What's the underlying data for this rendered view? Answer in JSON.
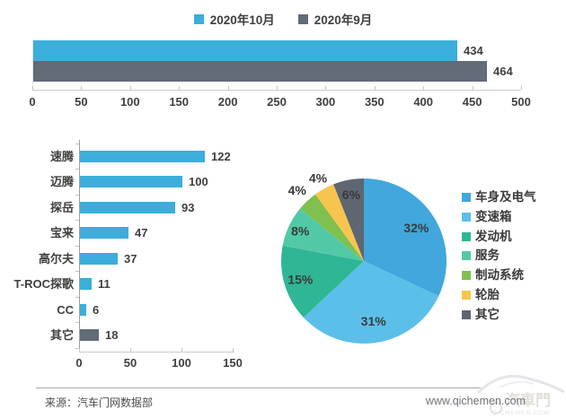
{
  "footer": {
    "source": "来源：汽车门网数据部",
    "website": "www.qichemen.com",
    "watermark_cn": "汽車門",
    "watermark_en": "QICHEMEN.COM"
  },
  "chart_data": [
    {
      "id": "monthly-comparison",
      "type": "bar",
      "orientation": "horizontal",
      "legend_position": "top",
      "data_labels": true,
      "xlim": [
        0,
        500
      ],
      "xticks": [
        0,
        50,
        100,
        150,
        200,
        250,
        300,
        350,
        400,
        450,
        500
      ],
      "series": [
        {
          "name": "2020年10月",
          "value": 434,
          "color": "#3BAEDB"
        },
        {
          "name": "2020年9月",
          "value": 464,
          "color": "#626B78"
        }
      ]
    },
    {
      "id": "model-ranking",
      "type": "bar",
      "orientation": "horizontal",
      "data_labels": true,
      "xlim": [
        0,
        150
      ],
      "xticks": [
        0,
        50,
        100,
        150
      ],
      "categories": [
        "速腾",
        "迈腾",
        "探岳",
        "宝来",
        "高尔夫",
        "T-ROC探歌",
        "CC",
        "其它"
      ],
      "values": [
        122,
        100,
        93,
        47,
        37,
        11,
        6,
        18
      ],
      "bar_colors": [
        "#3BAEDB",
        "#3BAEDB",
        "#3BAEDB",
        "#3BAEDB",
        "#3BAEDB",
        "#3BAEDB",
        "#3BAEDB",
        "#626B78"
      ]
    },
    {
      "id": "category-share",
      "type": "pie",
      "legend_position": "right",
      "start_angle_deg": 0,
      "slices": [
        {
          "label": "车身及电气",
          "value": 32,
          "pct_label": "32%",
          "color": "#41A7DC"
        },
        {
          "label": "变速箱",
          "value": 31,
          "pct_label": "31%",
          "color": "#5CBFE9"
        },
        {
          "label": "发动机",
          "value": 15,
          "pct_label": "15%",
          "color": "#2FB695"
        },
        {
          "label": "服务",
          "value": 8,
          "pct_label": "8%",
          "color": "#52C9A6"
        },
        {
          "label": "制动系统",
          "value": 4,
          "pct_label": "4%",
          "color": "#80C04E"
        },
        {
          "label": "轮胎",
          "value": 4,
          "pct_label": "4%",
          "color": "#F7C54E"
        },
        {
          "label": "其它",
          "value": 6,
          "pct_label": "6%",
          "color": "#5E6671"
        }
      ]
    }
  ]
}
